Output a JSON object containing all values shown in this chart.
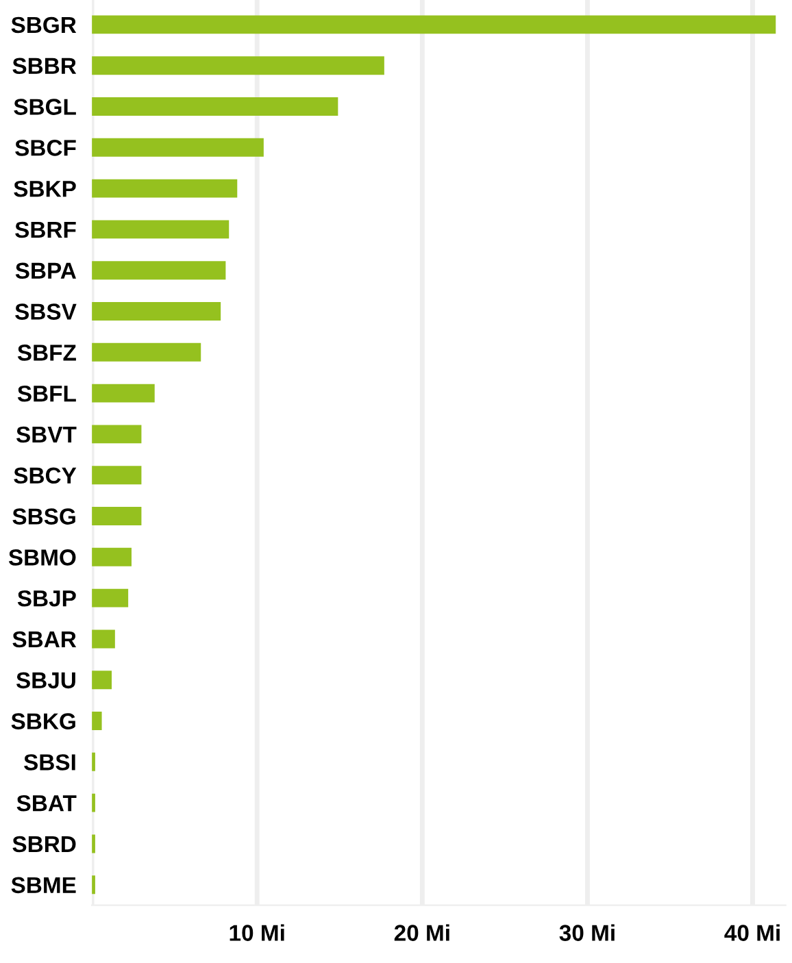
{
  "chart_data": {
    "type": "bar",
    "orientation": "horizontal",
    "categories": [
      "SBGR",
      "SBBR",
      "SBGL",
      "SBCF",
      "SBKP",
      "SBRF",
      "SBPA",
      "SBSV",
      "SBFZ",
      "SBFL",
      "SBVT",
      "SBCY",
      "SBSG",
      "SBMO",
      "SBJP",
      "SBAR",
      "SBJU",
      "SBKG",
      "SBSI",
      "SBAT",
      "SBRD",
      "SBME"
    ],
    "values": [
      41.4,
      17.7,
      14.9,
      10.4,
      8.8,
      8.3,
      8.1,
      7.8,
      6.6,
      3.8,
      3.0,
      3.0,
      3.0,
      2.4,
      2.2,
      1.4,
      1.2,
      0.6,
      0.2,
      0.2,
      0.2,
      0.2
    ],
    "color": "#95c11f",
    "xlim": [
      0,
      42
    ],
    "xticks": [
      {
        "value": 0,
        "label": null
      },
      {
        "value": 10,
        "label": "10 Mi"
      },
      {
        "value": 20,
        "label": "20 Mi"
      },
      {
        "value": 30,
        "label": "30 Mi"
      },
      {
        "value": 40,
        "label": "40 Mi"
      }
    ],
    "grid": "x",
    "legend": false
  }
}
